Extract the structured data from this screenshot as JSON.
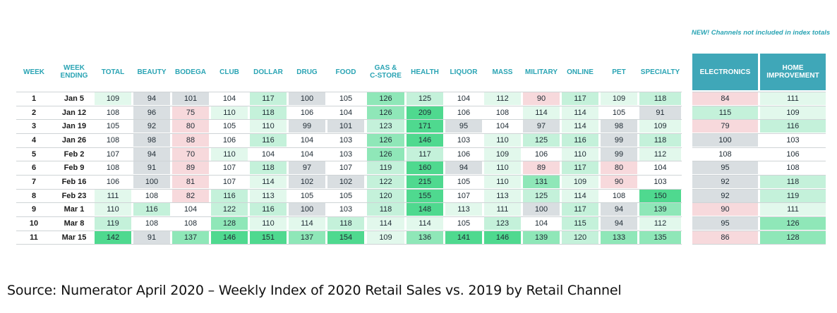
{
  "chart_data": {
    "type": "table",
    "note": "NEW!\nChannels not included in index totals",
    "columns": [
      "WEEK",
      "WEEK\nENDING",
      "TOTAL",
      "BEAUTY",
      "BODEGA",
      "CLUB",
      "DOLLAR",
      "DRUG",
      "FOOD",
      "GAS &\nC-STORE",
      "HEALTH",
      "LIQUOR",
      "MASS",
      "MILITARY",
      "ONLINE",
      "PET",
      "SPECIALTY",
      "ELECTRONICS",
      "HOME\nIMPROVEMENT"
    ],
    "rows": [
      {
        "week": "1",
        "ending": "Jan 5",
        "values": [
          109,
          94,
          101,
          104,
          117,
          100,
          105,
          126,
          125,
          104,
          112,
          90,
          117,
          109,
          118,
          84,
          111
        ]
      },
      {
        "week": "2",
        "ending": "Jan 12",
        "values": [
          108,
          96,
          75,
          110,
          118,
          106,
          104,
          126,
          209,
          106,
          108,
          114,
          114,
          105,
          91,
          115,
          109
        ]
      },
      {
        "week": "3",
        "ending": "Jan 19",
        "values": [
          105,
          92,
          80,
          105,
          110,
          99,
          101,
          123,
          171,
          95,
          104,
          97,
          114,
          98,
          109,
          79,
          116
        ]
      },
      {
        "week": "4",
        "ending": "Jan 26",
        "values": [
          108,
          98,
          88,
          106,
          116,
          104,
          103,
          126,
          146,
          103,
          110,
          125,
          116,
          99,
          118,
          100,
          103
        ]
      },
      {
        "week": "5",
        "ending": "Feb 2",
        "values": [
          107,
          94,
          70,
          110,
          104,
          104,
          103,
          126,
          117,
          106,
          109,
          106,
          110,
          99,
          112,
          108,
          106
        ]
      },
      {
        "week": "6",
        "ending": "Feb 9",
        "values": [
          108,
          91,
          89,
          107,
          118,
          97,
          107,
          119,
          160,
          94,
          110,
          89,
          117,
          80,
          104,
          95,
          108
        ]
      },
      {
        "week": "7",
        "ending": "Feb 16",
        "values": [
          106,
          100,
          81,
          107,
          114,
          102,
          102,
          122,
          215,
          105,
          110,
          131,
          109,
          90,
          103,
          92,
          118
        ]
      },
      {
        "week": "8",
        "ending": "Feb 23",
        "values": [
          111,
          108,
          82,
          116,
          113,
          105,
          105,
          120,
          155,
          107,
          113,
          125,
          114,
          108,
          150,
          92,
          119
        ]
      },
      {
        "week": "9",
        "ending": "Mar 1",
        "values": [
          110,
          116,
          104,
          122,
          116,
          100,
          103,
          118,
          148,
          113,
          111,
          100,
          117,
          94,
          139,
          90,
          111
        ]
      },
      {
        "week": "10",
        "ending": "Mar 8",
        "values": [
          119,
          108,
          108,
          128,
          110,
          114,
          118,
          114,
          114,
          105,
          123,
          104,
          115,
          94,
          112,
          95,
          126
        ]
      },
      {
        "week": "11",
        "ending": "Mar 15",
        "values": [
          142,
          91,
          137,
          146,
          151,
          137,
          154,
          109,
          136,
          141,
          146,
          139,
          120,
          133,
          135,
          86,
          128
        ]
      }
    ],
    "colors": {
      "strong_green": "#4fd98f",
      "green": "#8fe7b8",
      "light_green": "#c4f1da",
      "pale_green": "#e2f8ec",
      "grey": "#d9dee1",
      "pink": "#f7d9dc",
      "white": "#ffffff",
      "header_teal": "#3fa7b8",
      "header_text": "#2aa4b4"
    }
  },
  "source": "Source: Numerator April 2020 – Weekly Index of 2020 Retail Sales vs. 2019 by Retail Channel"
}
